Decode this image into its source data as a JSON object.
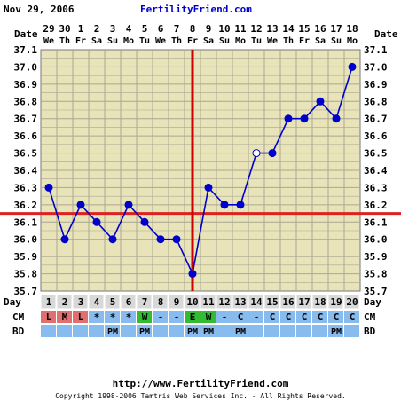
{
  "header": {
    "date": "Nov 29, 2006",
    "site": "FertilityFriend.com"
  },
  "footer": {
    "url": "http://www.FertilityFriend.com",
    "copyright": "Copyright 1998-2006 Tamtris Web Services Inc. - All Rights Reserved."
  },
  "colors": {
    "grid_bg": "#e8e3b8",
    "grid_line": "#a8a890",
    "temp_line": "#0000cc",
    "coverline": "#dd2222",
    "ovulation_line": "#cc0000",
    "header_text": "#0000cc",
    "label_text": "#000000",
    "day_row_bg": "#d8d8d8",
    "cm_bg": "#88bbee",
    "cm_L": "#e07070",
    "cm_W": "#33bb33",
    "cm_E": "#33bb33"
  },
  "chart_data": {
    "type": "line",
    "row_labels": {
      "date": "Date",
      "day": "Day",
      "cm": "CM",
      "bd": "BD"
    },
    "dates": [
      "29",
      "30",
      "1",
      "2",
      "3",
      "4",
      "5",
      "6",
      "7",
      "8",
      "9",
      "10",
      "11",
      "12",
      "13",
      "14",
      "15",
      "16",
      "17",
      "18"
    ],
    "weekdays": [
      "We",
      "Th",
      "Fr",
      "Sa",
      "Su",
      "Mo",
      "Tu",
      "We",
      "Th",
      "Fr",
      "Sa",
      "Su",
      "Mo",
      "Tu",
      "We",
      "Th",
      "Fr",
      "Sa",
      "Su",
      "Mo"
    ],
    "days": [
      "1",
      "2",
      "3",
      "4",
      "5",
      "6",
      "7",
      "8",
      "9",
      "10",
      "11",
      "12",
      "13",
      "14",
      "15",
      "16",
      "17",
      "18",
      "19",
      "20"
    ],
    "temperatures": [
      36.3,
      36.0,
      36.2,
      36.1,
      36.0,
      36.2,
      36.1,
      36.0,
      36.0,
      35.8,
      36.3,
      36.2,
      36.2,
      36.5,
      36.5,
      36.7,
      36.7,
      36.8,
      36.7,
      37.0
    ],
    "open_points": [
      14
    ],
    "yticks": [
      "37.1",
      "37.0",
      "36.9",
      "36.8",
      "36.7",
      "36.6",
      "36.5",
      "36.4",
      "36.3",
      "36.2",
      "36.1",
      "36.0",
      "35.9",
      "35.8",
      "35.7"
    ],
    "ylim": [
      35.7,
      37.1
    ],
    "coverline": 36.15,
    "ovulation_day": 10,
    "cm": [
      "L",
      "M",
      "L",
      "*",
      "*",
      "*",
      "W",
      "-",
      "-",
      "E",
      "W",
      "-",
      "C",
      "-",
      "C",
      "C",
      "C",
      "C",
      "C",
      "C"
    ],
    "bd": [
      "",
      "",
      "",
      "",
      "PM",
      "",
      "PM",
      "",
      "",
      "PM",
      "PM",
      "",
      "PM",
      "",
      "",
      "",
      "",
      "",
      "PM",
      ""
    ],
    "grid": true
  }
}
